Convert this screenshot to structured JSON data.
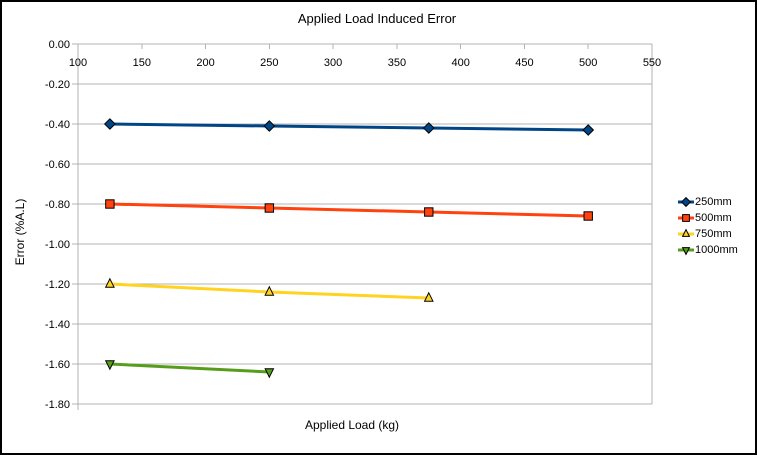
{
  "chart_data": {
    "type": "line",
    "title": "Applied Load Induced Error",
    "xlabel": "Applied Load (kg)",
    "ylabel": "Error (%A.L)",
    "xlim": [
      100,
      550
    ],
    "ylim": [
      -1.8,
      0
    ],
    "x_ticks": [
      100,
      150,
      200,
      250,
      300,
      350,
      400,
      450,
      500,
      550
    ],
    "x_tick_labels": [
      "100",
      "150",
      "200",
      "250",
      "300",
      "350",
      "400",
      "450",
      "500",
      "550"
    ],
    "y_ticks": [
      0,
      -0.2,
      -0.4,
      -0.6,
      -0.8,
      -1.0,
      -1.2,
      -1.4,
      -1.6,
      -1.8
    ],
    "y_tick_labels": [
      "0.00",
      "-0.20",
      "-0.40",
      "-0.60",
      "-0.80",
      "-1.00",
      "-1.20",
      "-1.40",
      "-1.60",
      "-1.80"
    ],
    "grid": "horizontal",
    "legend_position": "right",
    "series": [
      {
        "name": "250mm",
        "color": "#004586",
        "marker": "diamond",
        "x": [
          125,
          250,
          375,
          500
        ],
        "y": [
          -0.4,
          -0.41,
          -0.42,
          -0.43
        ]
      },
      {
        "name": "500mm",
        "color": "#FF420E",
        "marker": "square",
        "x": [
          125,
          250,
          375,
          500
        ],
        "y": [
          -0.8,
          -0.82,
          -0.84,
          -0.86
        ]
      },
      {
        "name": "750mm",
        "color": "#FFD320",
        "marker": "triangle-up",
        "x": [
          125,
          250,
          375
        ],
        "y": [
          -1.2,
          -1.24,
          -1.27
        ]
      },
      {
        "name": "1000mm",
        "color": "#579D1C",
        "marker": "triangle-down",
        "x": [
          125,
          250
        ],
        "y": [
          -1.6,
          -1.64
        ]
      }
    ],
    "grid_color": "#b3b3b3",
    "axis_color": "#b3b3b3",
    "text_color": "#000000",
    "background_color": "#ffffff",
    "border_color": "#000000"
  }
}
